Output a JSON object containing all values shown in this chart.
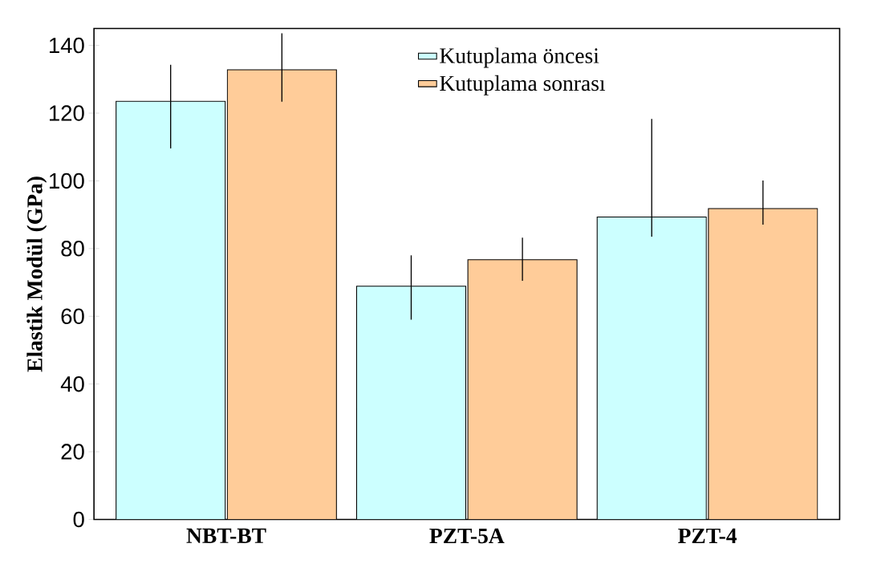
{
  "chart_data": {
    "type": "bar",
    "ylabel": "Elastik Modül (GPa)",
    "categories": [
      "NBT-BT",
      "PZT-5A",
      "PZT-4"
    ],
    "series": [
      {
        "name": "Kutuplama öncesi",
        "color": "#ccffff",
        "values": [
          123.5,
          68.9,
          89.3
        ],
        "errors": [
          [
            109.6,
            134.3
          ],
          [
            59,
            78
          ],
          [
            83.5,
            118.3
          ]
        ]
      },
      {
        "name": "Kutuplama sonrası",
        "color": "#ffcc99",
        "values": [
          132.8,
          76.7,
          91.8
        ],
        "errors": [
          [
            123.4,
            143.6
          ],
          [
            70.5,
            83.2
          ],
          [
            87.1,
            100.1
          ]
        ]
      }
    ],
    "ylim": [
      0,
      145
    ],
    "yticks": [
      0,
      20,
      40,
      60,
      80,
      100,
      120,
      140
    ],
    "legend": "top",
    "grid": false
  }
}
